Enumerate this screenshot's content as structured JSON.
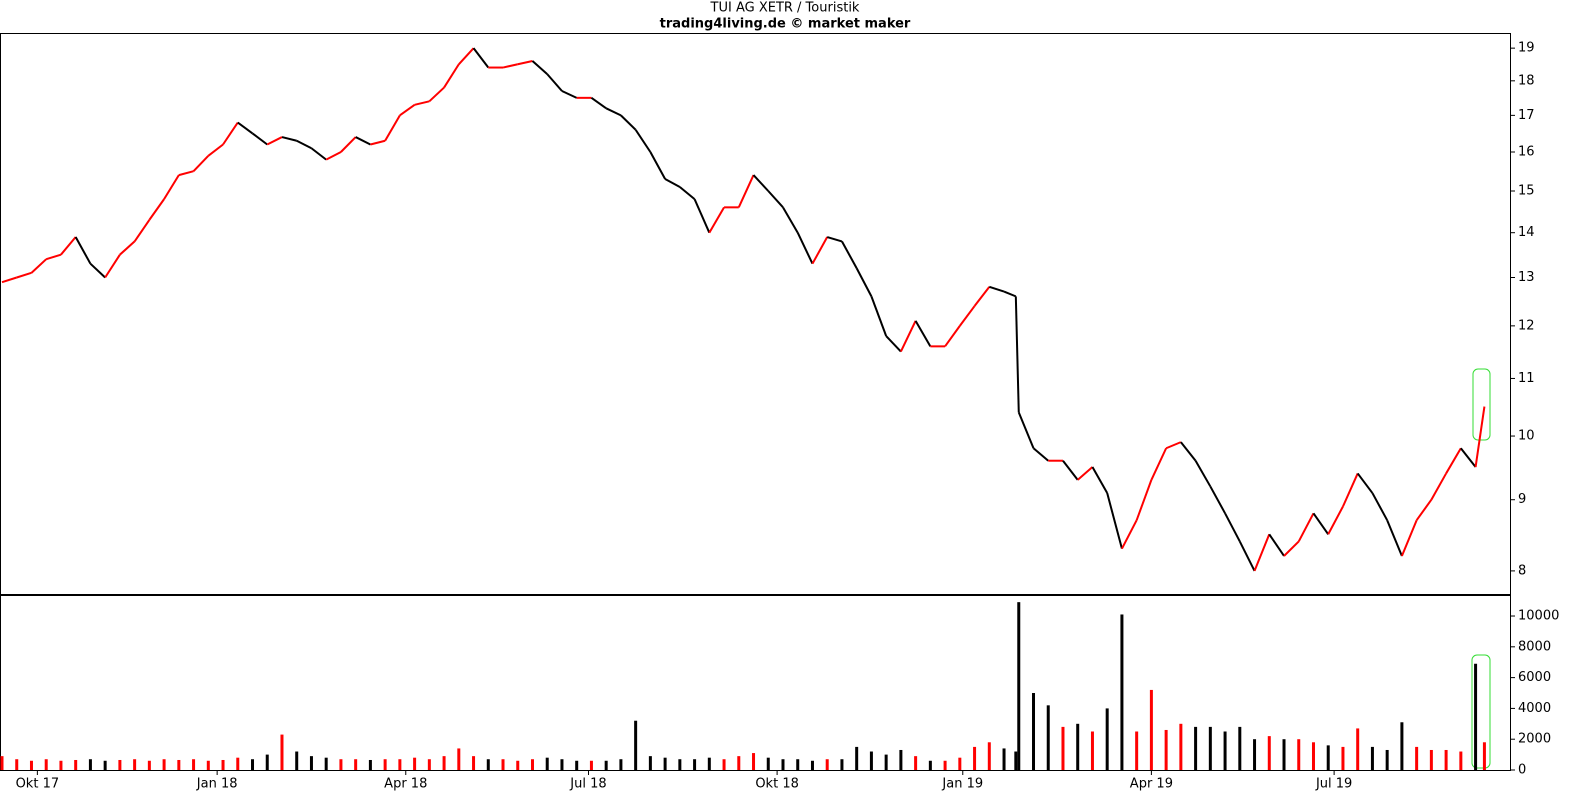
{
  "chart_data": [
    {
      "type": "line",
      "title": "TUI AG XETR / Touristik",
      "subtitle": "trading4living.de © market maker",
      "x": [
        0,
        5,
        10,
        15,
        20,
        25,
        30,
        35,
        40,
        45,
        50,
        55,
        60,
        65,
        70,
        75,
        80,
        85,
        90,
        95,
        100,
        105,
        110,
        115,
        120,
        125,
        130,
        135,
        140,
        145,
        150,
        155,
        160,
        165,
        170,
        175,
        180,
        185,
        190,
        195,
        200,
        205,
        210,
        215,
        220,
        225,
        230,
        235,
        240,
        245,
        250,
        255,
        260,
        265,
        270,
        275,
        280,
        285,
        290,
        295,
        300,
        305,
        310,
        315,
        320,
        325,
        330,
        335,
        340,
        344,
        345,
        350,
        355,
        360,
        365,
        370,
        375,
        380,
        385,
        390,
        395,
        400,
        405,
        410,
        415,
        420,
        425,
        430,
        435,
        440,
        445,
        450,
        455,
        460,
        465,
        470,
        475,
        480,
        485,
        490,
        495,
        500,
        503
      ],
      "values": [
        12.9,
        13.0,
        13.1,
        13.4,
        13.5,
        13.9,
        13.3,
        13.0,
        13.5,
        13.8,
        14.3,
        14.8,
        15.4,
        15.5,
        15.9,
        16.2,
        16.8,
        16.5,
        16.2,
        16.4,
        16.3,
        16.1,
        15.8,
        16.0,
        16.4,
        16.2,
        16.3,
        17.0,
        17.3,
        17.4,
        17.8,
        18.5,
        19.0,
        18.4,
        18.4,
        18.5,
        18.6,
        18.2,
        17.7,
        17.5,
        17.5,
        17.2,
        17.0,
        16.6,
        16.0,
        15.3,
        15.1,
        14.8,
        14.0,
        14.6,
        14.6,
        15.4,
        15.0,
        14.6,
        14.0,
        13.3,
        13.9,
        13.8,
        13.2,
        12.6,
        11.8,
        11.5,
        12.1,
        11.6,
        11.6,
        12.0,
        12.4,
        12.8,
        12.7,
        12.6,
        10.4,
        9.8,
        9.6,
        9.6,
        9.3,
        9.5,
        9.1,
        8.3,
        8.7,
        9.3,
        9.8,
        9.9,
        9.6,
        9.2,
        8.8,
        8.4,
        8.0,
        8.5,
        8.2,
        8.4,
        8.8,
        8.5,
        8.9,
        9.4,
        9.1,
        8.7,
        8.2,
        8.7,
        9.0,
        9.4,
        9.8,
        9.5,
        10.5
      ],
      "up_color": "#ff0000",
      "down_color": "#000000",
      "log_scale": true,
      "xlim": [
        0,
        511
      ],
      "ylim": [
        7.7,
        19.45
      ],
      "yticks": [
        8,
        9,
        10,
        11,
        12,
        13,
        14,
        15,
        16,
        17,
        18,
        19
      ]
    },
    {
      "type": "bar",
      "x": [
        0,
        5,
        10,
        15,
        20,
        25,
        30,
        35,
        40,
        45,
        50,
        55,
        60,
        65,
        70,
        75,
        80,
        85,
        90,
        95,
        100,
        105,
        110,
        115,
        120,
        125,
        130,
        135,
        140,
        145,
        150,
        155,
        160,
        165,
        170,
        175,
        180,
        185,
        190,
        195,
        200,
        205,
        210,
        215,
        220,
        225,
        230,
        235,
        240,
        245,
        250,
        255,
        260,
        265,
        270,
        275,
        280,
        285,
        290,
        295,
        300,
        305,
        310,
        315,
        320,
        325,
        330,
        335,
        340,
        344,
        345,
        350,
        355,
        360,
        365,
        370,
        375,
        380,
        385,
        390,
        395,
        400,
        405,
        410,
        415,
        420,
        425,
        430,
        435,
        440,
        445,
        450,
        455,
        460,
        465,
        470,
        475,
        480,
        485,
        490,
        495,
        500,
        503
      ],
      "values": [
        900,
        700,
        600,
        700,
        600,
        650,
        700,
        600,
        650,
        700,
        600,
        700,
        650,
        700,
        600,
        650,
        800,
        700,
        1000,
        2300,
        1200,
        900,
        800,
        700,
        700,
        650,
        700,
        700,
        800,
        700,
        900,
        1400,
        900,
        700,
        700,
        600,
        700,
        800,
        700,
        600,
        600,
        600,
        700,
        3200,
        900,
        800,
        700,
        700,
        800,
        700,
        900,
        1100,
        800,
        700,
        700,
        600,
        700,
        700,
        1500,
        1200,
        1000,
        1300,
        900,
        600,
        600,
        800,
        1500,
        1800,
        1400,
        1200,
        10900,
        5000,
        4200,
        2800,
        3000,
        2500,
        4000,
        10100,
        2500,
        5200,
        2600,
        3000,
        2800,
        2800,
        2500,
        2800,
        2000,
        2200,
        2000,
        2000,
        1800,
        1600,
        1500,
        2700,
        1500,
        1300,
        3100,
        1500,
        1300,
        1300,
        1200,
        6900,
        1800
      ],
      "xlim": [
        0,
        511
      ],
      "ylim": [
        0,
        11300
      ],
      "yticks": [
        0,
        2000,
        4000,
        6000,
        8000,
        10000
      ],
      "xticks": [
        {
          "value": 12,
          "label": "Okt 17"
        },
        {
          "value": 73,
          "label": "Jan 18"
        },
        {
          "value": 137,
          "label": "Apr 18"
        },
        {
          "value": 199,
          "label": "Jul 18"
        },
        {
          "value": 263,
          "label": "Okt 18"
        },
        {
          "value": 326,
          "label": "Jan 19"
        },
        {
          "value": 390,
          "label": "Apr 19"
        },
        {
          "value": 452,
          "label": "Jul 19"
        }
      ]
    }
  ]
}
